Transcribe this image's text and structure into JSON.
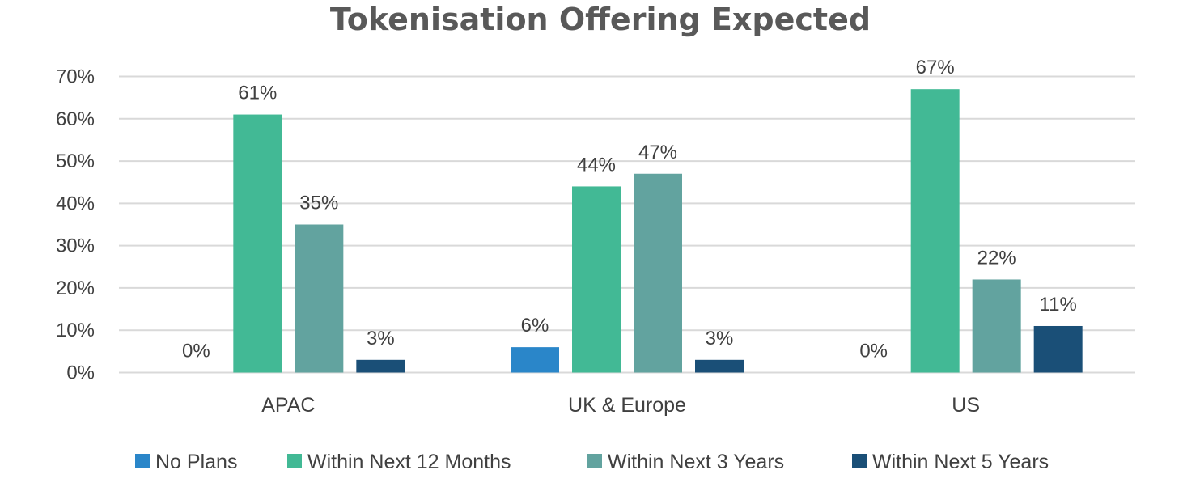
{
  "chart_data": {
    "type": "bar",
    "title": "Tokenisation Offering Expected",
    "categories": [
      "APAC",
      "UK & Europe",
      "US"
    ],
    "series": [
      {
        "name": "No Plans",
        "color": "#2a86c9",
        "values": [
          0,
          6,
          0
        ],
        "labels": [
          "0%",
          "6%",
          "0%"
        ]
      },
      {
        "name": "Within Next 12 Months",
        "color": "#42b995",
        "values": [
          61,
          44,
          67
        ],
        "labels": [
          "61%",
          "44%",
          "67%"
        ]
      },
      {
        "name": "Within Next 3 Years",
        "color": "#62a39f",
        "values": [
          35,
          47,
          22
        ],
        "labels": [
          "35%",
          "47%",
          "22%"
        ]
      },
      {
        "name": "Within Next 5 Years",
        "color": "#1a4f77",
        "values": [
          3,
          3,
          11
        ],
        "labels": [
          "3%",
          "3%",
          "11%"
        ]
      }
    ],
    "yticks": [
      "0%",
      "10%",
      "20%",
      "30%",
      "40%",
      "50%",
      "60%",
      "70%"
    ],
    "ylim": [
      0,
      70
    ],
    "xlabel": "",
    "ylabel": "",
    "legend_position": "bottom",
    "grid": true
  }
}
